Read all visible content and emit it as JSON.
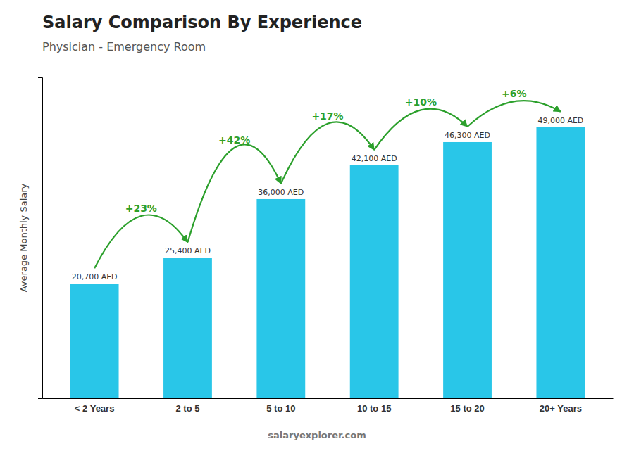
{
  "chart_data": {
    "type": "bar",
    "title": "Salary Comparison By Experience",
    "subtitle": "Physician - Emergency Room",
    "categories": [
      "< 2 Years",
      "2 to 5",
      "5 to 10",
      "10 to 15",
      "15 to 20",
      "20+ Years"
    ],
    "values": [
      20700,
      25400,
      36000,
      42100,
      46300,
      49000
    ],
    "value_labels": [
      "20,700 AED",
      "25,400 AED",
      "36,000 AED",
      "42,100 AED",
      "46,300 AED",
      "49,000 AED"
    ],
    "data_labels": true,
    "color": "#29C6E8",
    "ylabel": "Average Monthly Salary",
    "ylim": [
      0,
      58000
    ],
    "tick_labels": "x",
    "grid": false,
    "annotations": [
      "+23%",
      "+42%",
      "+17%",
      "+10%",
      "+6%"
    ],
    "source": "salaryexplorer.com"
  }
}
